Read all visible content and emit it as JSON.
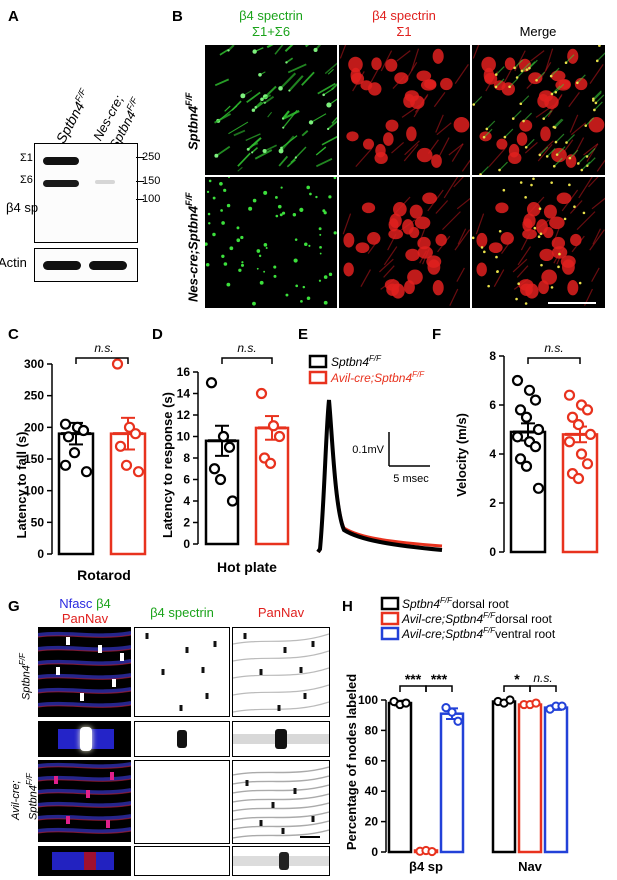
{
  "panels": {
    "A": "A",
    "B": "B",
    "C": "C",
    "D": "D",
    "E": "E",
    "F": "F",
    "G": "G",
    "H": "H"
  },
  "panel_A": {
    "lane_labels": [
      "Sptbn4",
      "F/F",
      "Nes-cre;",
      "Sptbn4",
      "F/F"
    ],
    "band_labels": [
      "Σ1",
      "Σ6",
      "β4 sp",
      "Actin"
    ],
    "marker_labels": [
      "250",
      "150",
      "100"
    ]
  },
  "panel_B": {
    "col1_title_line1": "β4 spectrin",
    "col1_title_line2": "Σ1+Σ6",
    "col2_title_line1": "β4 spectrin",
    "col2_title_line2": "Σ1",
    "col3_title": "Merge",
    "row1_label": "Sptbn4",
    "row1_sup": "F/F",
    "row2_label": "Nes-cre;Sptbn4",
    "row2_sup": "F/F",
    "colors": {
      "green": "#1aa31a",
      "red": "#e0201e"
    }
  },
  "panel_C": {
    "significance": "n.s.",
    "xlabel": "Rotarod"
  },
  "panel_D": {
    "significance": "n.s.",
    "xlabel": "Hot plate"
  },
  "panel_E": {
    "legend": [
      {
        "text": "Sptbn4",
        "sup": "F/F"
      },
      {
        "text": "Avil-cre;Sptbn4",
        "sup": "F/F"
      }
    ],
    "scale_v": "0.1mV",
    "scale_t": "5 msec"
  },
  "panel_F": {
    "significance": "n.s."
  },
  "panel_G": {
    "title_nfasc": "Nfasc",
    "title_b4": "β4",
    "title_pannav": "PanNav",
    "col2_title": "β4 spectrin",
    "col3_title": "PanNav",
    "row1_label": "Sptbn4",
    "row1_sup": "F/F",
    "row2_label_line1": "Avil-cre;",
    "row2_label_line2": "Sptbn4",
    "row2_sup": "F/F"
  },
  "panel_H": {
    "legend": [
      {
        "text": "Sptbn4",
        "sup": "F/F",
        "suffix": "dorsal root"
      },
      {
        "text": "Avil-cre;Sptbn4",
        "sup": "F/F",
        "suffix": "dorsal root"
      },
      {
        "text": "Avil-cre;Sptbn4",
        "sup": "F/F",
        "suffix": "ventral root"
      }
    ],
    "sig": [
      "***",
      "***",
      "*",
      "n.s."
    ]
  },
  "chart_data": [
    {
      "id": "C",
      "type": "bar",
      "categories": [
        "",
        ""
      ],
      "values": [
        190,
        190
      ],
      "errors": [
        17,
        25
      ],
      "points": [
        [
          205,
          200,
          195,
          185,
          160,
          130,
          140
        ],
        [
          300,
          200,
          190,
          170,
          140,
          130
        ]
      ],
      "colors": [
        "#000000",
        "#e8321e"
      ],
      "ylabel": "Latency to fall (s)",
      "xlabel": "Rotarod",
      "ylim": [
        0,
        300
      ],
      "yticks": [
        0,
        50,
        100,
        150,
        200,
        250,
        300
      ]
    },
    {
      "id": "D",
      "type": "bar",
      "categories": [
        "",
        ""
      ],
      "values": [
        9.6,
        10.8
      ],
      "errors": [
        1.4,
        1.1
      ],
      "points": [
        [
          15,
          10,
          9,
          7,
          6,
          4
        ],
        [
          14,
          11,
          10,
          8,
          7.5
        ]
      ],
      "colors": [
        "#000000",
        "#e8321e"
      ],
      "ylabel": "Latency to response (s)",
      "xlabel": "Hot plate",
      "ylim": [
        0,
        16
      ],
      "yticks": [
        0,
        2,
        4,
        6,
        8,
        10,
        12,
        14,
        16
      ]
    },
    {
      "id": "F",
      "type": "bar",
      "categories": [
        "",
        ""
      ],
      "values": [
        4.9,
        4.8
      ],
      "errors": [
        0.35,
        0.32
      ],
      "points": [
        [
          7,
          6.6,
          6.2,
          5.8,
          5.5,
          5.0,
          4.7,
          4.5,
          4.3,
          3.8,
          3.5,
          2.6
        ],
        [
          6.4,
          6.0,
          5.8,
          5.5,
          5.2,
          4.8,
          4.5,
          4.0,
          3.6,
          3.2,
          3.0
        ]
      ],
      "colors": [
        "#000000",
        "#e8321e"
      ],
      "ylabel": "Velocity (m/s)",
      "ylim": [
        0,
        8
      ],
      "yticks": [
        0,
        2,
        4,
        6,
        8
      ]
    },
    {
      "id": "H",
      "type": "bar",
      "groups": [
        "β4 sp",
        "Nav"
      ],
      "series": [
        {
          "values": [
            98,
            99
          ],
          "errors": [
            1.5,
            0.8
          ],
          "color": "#000000"
        },
        {
          "values": [
            1,
            97
          ],
          "errors": [
            0.5,
            0.6
          ],
          "color": "#e8321e"
        },
        {
          "values": [
            91,
            95
          ],
          "errors": [
            3.5,
            1.5
          ],
          "color": "#2241d8"
        }
      ],
      "points": [
        [
          [
            99,
            97,
            98
          ],
          [
            99,
            98,
            100
          ]
        ],
        [
          [
            0.5,
            1,
            0.3
          ],
          [
            97,
            97,
            98
          ]
        ],
        [
          [
            95,
            92,
            86
          ],
          [
            94,
            96,
            96
          ]
        ]
      ],
      "ylabel": "Percentage of nodes labeled",
      "ylim": [
        0,
        100
      ],
      "yticks": [
        0,
        20,
        40,
        60,
        80,
        100
      ]
    }
  ]
}
